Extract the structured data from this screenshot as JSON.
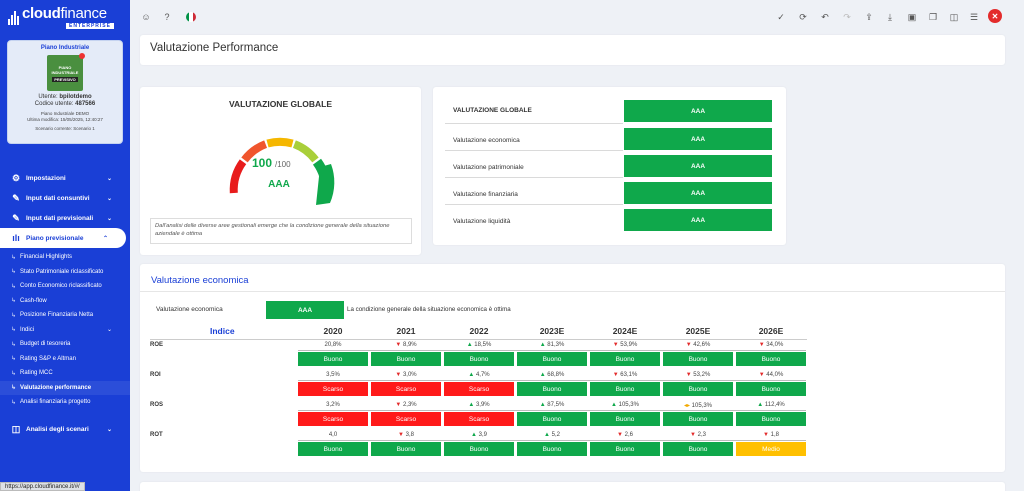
{
  "app": {
    "logo_main": "cloud",
    "logo_thin": "finance",
    "logo_sub": "ENTERPRISE"
  },
  "card": {
    "title": "Piano Industriale",
    "img_line1": "PIANO",
    "img_line2": "INDUSTRIALE",
    "img_line3": "PREVISIVO",
    "user_label": "Utente:",
    "user": "bpilotdemo",
    "code_label": "Codice utente:",
    "code": "487566",
    "plan": "Piano Industriale DEMO",
    "modified": "Ultima modifica: 15/05/2025, 12:40:27",
    "scenario": "Scenario corrente: Scenario 1"
  },
  "nav": {
    "impostazioni": "Impostazioni",
    "consuntivi": "Input dati consuntivi",
    "previsionali": "Input dati previsionali",
    "piano": "Piano previsionale",
    "sub": [
      "Financial Highlights",
      "Stato Patrimoniale riclassificato",
      "Conto Economico riclassificato",
      "Cash-flow",
      "Posizione Finanziaria Netta",
      "Indici",
      "Budget di tesoreria",
      "Rating S&P e Altman",
      "Rating MCC",
      "Valutazione performance",
      "Analisi finanziaria progetto"
    ],
    "scenari": "Analisi degli scenari"
  },
  "statusbar": "https://app.cloudfinance.it/#/",
  "page_title": "Valutazione Performance",
  "gauge": {
    "title": "VALUTAZIONE GLOBALE",
    "score": "100",
    "max": "/100",
    "score_value": 100,
    "rating": "AAA",
    "note": "Dall'analisi delle diverse aree gestionali emerge che la condizione generale della situazione aziendale è ottima"
  },
  "summary": [
    {
      "label": "VALUTAZIONE GLOBALE",
      "rating": "AAA"
    },
    {
      "label": "Valutazione economica",
      "rating": "AAA"
    },
    {
      "label": "Valutazione patrimoniale",
      "rating": "AAA"
    },
    {
      "label": "Valutazione finanziaria",
      "rating": "AAA"
    },
    {
      "label": "Valutazione liquidità",
      "rating": "AAA"
    }
  ],
  "econ": {
    "title": "Valutazione economica",
    "label": "Valutazione economica",
    "rating": "AAA",
    "desc": "La condizione generale della situazione economica è ottima",
    "header": [
      "Indice",
      "2020",
      "2021",
      "2022",
      "2023E",
      "2024E",
      "2025E",
      "2026E"
    ],
    "rows": [
      {
        "name": "ROE",
        "values": [
          "20,8%",
          "8,9%",
          "18,5%",
          "81,3%",
          "53,9%",
          "42,6%",
          "34,0%"
        ],
        "trend": [
          "",
          "down",
          "up",
          "up",
          "down",
          "down",
          "down"
        ],
        "ratings": [
          "Buono",
          "Buono",
          "Buono",
          "Buono",
          "Buono",
          "Buono",
          "Buono"
        ]
      },
      {
        "name": "ROI",
        "values": [
          "3,5%",
          "3,0%",
          "4,7%",
          "68,8%",
          "63,1%",
          "53,2%",
          "44,0%"
        ],
        "trend": [
          "",
          "down",
          "up",
          "up",
          "down",
          "down",
          "down"
        ],
        "ratings": [
          "Scarso",
          "Scarso",
          "Scarso",
          "Buono",
          "Buono",
          "Buono",
          "Buono"
        ]
      },
      {
        "name": "ROS",
        "values": [
          "3,2%",
          "2,3%",
          "3,9%",
          "87,5%",
          "105,3%",
          "105,3%",
          "112,4%"
        ],
        "trend": [
          "",
          "down",
          "up",
          "up",
          "up",
          "flat",
          "up"
        ],
        "ratings": [
          "Scarso",
          "Scarso",
          "Scarso",
          "Buono",
          "Buono",
          "Buono",
          "Buono"
        ]
      },
      {
        "name": "ROT",
        "values": [
          "4,0",
          "3,8",
          "3,9",
          "5,2",
          "2,6",
          "2,3",
          "1,8"
        ],
        "trend": [
          "",
          "down",
          "up",
          "up",
          "down",
          "down",
          "down"
        ],
        "ratings": [
          "Buono",
          "Buono",
          "Buono",
          "Buono",
          "Buono",
          "Buono",
          "Medio"
        ]
      }
    ]
  }
}
